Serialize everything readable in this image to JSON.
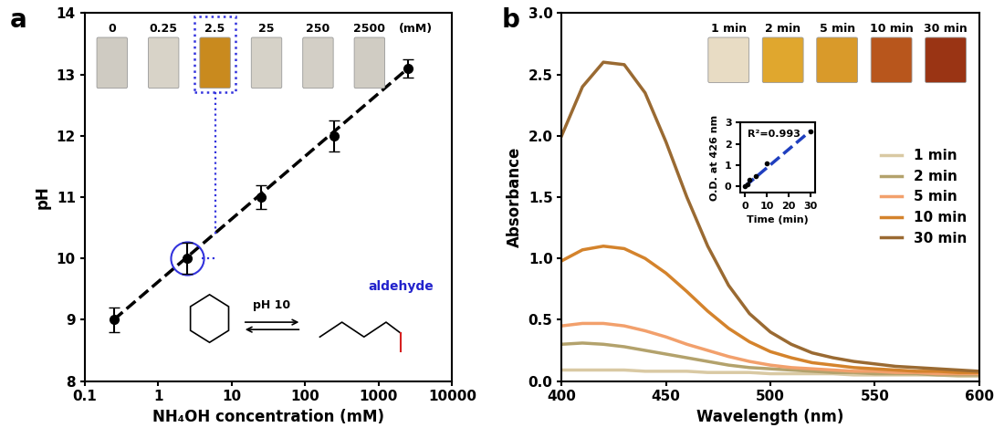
{
  "chart_data": [
    {
      "type": "scatter",
      "x_label": "NH₄OH concentration (mM)",
      "y_label": "pH",
      "log": "x",
      "grid": false,
      "xlim": [
        0.1,
        10000
      ],
      "xticks": [
        0.1,
        1,
        10,
        100,
        1000,
        10000
      ],
      "ylim": [
        8,
        14
      ],
      "yticks": [
        8,
        9,
        10,
        11,
        12,
        13,
        14
      ],
      "series": [
        {
          "type": "scatter",
          "marker": "o",
          "color": "#000000",
          "x": [
            0.25,
            2.5,
            25,
            250,
            2500
          ],
          "values": [
            9.0,
            10.0,
            11.0,
            12.0,
            13.1
          ],
          "errors": [
            0.2,
            0.25,
            0.2,
            0.25,
            0.15
          ]
        },
        {
          "type": "line",
          "line_style": "dashed",
          "color": "#000000",
          "x": [
            0.25,
            2500
          ],
          "values": [
            9.0,
            13.1
          ]
        }
      ],
      "annotations": {
        "panel": "a",
        "tube_labels": [
          "0",
          "0.25",
          "2.5",
          "25",
          "250",
          "2500"
        ],
        "tube_unit": "(mM)",
        "tube_colors": [
          "#cfcbc2",
          "#d8d3c8",
          "#c98a1e",
          "#d6d2c8",
          "#d3cfc6",
          "#d0ccc3"
        ],
        "reaction": "pH 10",
        "group": "aldehyde"
      }
    },
    {
      "type": "line",
      "x_label": "Wavelength (nm)",
      "y_label": "Absorbance",
      "grid": false,
      "legend": "center right",
      "xlim": [
        400,
        600
      ],
      "xticks": [
        400,
        450,
        500,
        550,
        600
      ],
      "ylim": [
        0,
        3
      ],
      "yticks": [
        {
          "value": 0,
          "label": "0.0"
        },
        0.5,
        {
          "value": 1,
          "label": "1.0"
        },
        1.5,
        {
          "value": 2,
          "label": "2.0"
        },
        2.5,
        {
          "value": 3,
          "label": "3.0"
        }
      ],
      "x": [
        400,
        410,
        420,
        430,
        440,
        450,
        460,
        470,
        480,
        490,
        500,
        510,
        520,
        530,
        540,
        550,
        560,
        570,
        580,
        590,
        600
      ],
      "series": [
        {
          "name": "1 min",
          "color": "#d9c9a3",
          "values": [
            0.09,
            0.09,
            0.09,
            0.09,
            0.08,
            0.08,
            0.08,
            0.07,
            0.07,
            0.07,
            0.06,
            0.06,
            0.06,
            0.06,
            0.05,
            0.05,
            0.05,
            0.05,
            0.05,
            0.04,
            0.04
          ]
        },
        {
          "name": "2 min",
          "color": "#b3a26c",
          "values": [
            0.3,
            0.31,
            0.3,
            0.28,
            0.25,
            0.22,
            0.19,
            0.16,
            0.13,
            0.11,
            0.1,
            0.09,
            0.08,
            0.07,
            0.07,
            0.06,
            0.06,
            0.06,
            0.05,
            0.05,
            0.05
          ]
        },
        {
          "name": "5 min",
          "color": "#f2a06c",
          "values": [
            0.45,
            0.47,
            0.47,
            0.45,
            0.41,
            0.36,
            0.3,
            0.25,
            0.2,
            0.16,
            0.13,
            0.11,
            0.1,
            0.09,
            0.08,
            0.08,
            0.07,
            0.07,
            0.06,
            0.06,
            0.06
          ]
        },
        {
          "name": "10 min",
          "color": "#d4832c",
          "values": [
            0.98,
            1.07,
            1.1,
            1.08,
            1.0,
            0.88,
            0.73,
            0.57,
            0.43,
            0.32,
            0.24,
            0.19,
            0.15,
            0.13,
            0.11,
            0.1,
            0.09,
            0.08,
            0.08,
            0.07,
            0.07
          ]
        },
        {
          "name": "30 min",
          "color": "#9a6a32",
          "values": [
            2.0,
            2.4,
            2.6,
            2.58,
            2.35,
            1.95,
            1.5,
            1.1,
            0.78,
            0.55,
            0.4,
            0.3,
            0.23,
            0.19,
            0.16,
            0.14,
            0.12,
            0.11,
            0.1,
            0.09,
            0.08
          ]
        }
      ],
      "annotations": {
        "panel": "b",
        "tube_labels": [
          "1 min",
          "2 min",
          "5 min",
          "10 min",
          "30 min"
        ],
        "tube_colors": [
          "#e8dcc4",
          "#e0a72e",
          "#d99a2a",
          "#b8561c",
          "#9a3414"
        ]
      }
    },
    {
      "type": "scatter",
      "x_label": "Time (min)",
      "y_label": "O.D. at 426 nm",
      "grid": false,
      "xlim": [
        -2,
        32
      ],
      "xticks": [
        0,
        10,
        20,
        30
      ],
      "ylim": [
        -0.3,
        3
      ],
      "yticks": [
        0,
        1,
        2,
        3
      ],
      "series": [
        {
          "type": "scatter",
          "marker": "o",
          "color": "#000000",
          "x": [
            0,
            1,
            2,
            5,
            10,
            30
          ],
          "values": [
            0.0,
            0.09,
            0.31,
            0.47,
            1.1,
            2.6
          ]
        },
        {
          "type": "line",
          "line_style": "dashed",
          "color": "#1f3fbf",
          "x": [
            0,
            30
          ],
          "values": [
            0.0,
            2.62
          ]
        }
      ],
      "annotations": {
        "fit": "R²=0.993"
      }
    }
  ]
}
